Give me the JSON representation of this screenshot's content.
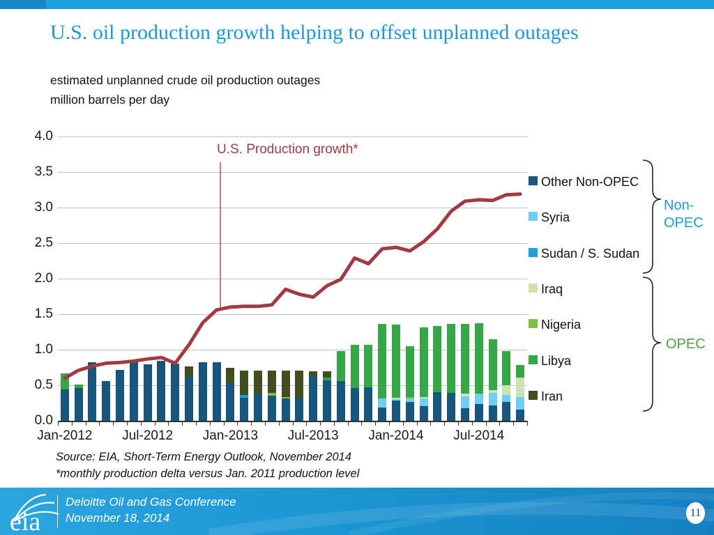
{
  "slide": {
    "title": "U.S. oil production growth helping to offset unplanned outages",
    "subtitle_line1": "estimated unplanned crude oil production outages",
    "subtitle_line2": "million barrels per day",
    "source_line1": "Source: EIA, Short-Term Energy Outlook, November 2014",
    "source_line2": "*monthly production delta versus Jan. 2011 production level",
    "page_number": "11"
  },
  "footer": {
    "logo_text": "eia",
    "event_name": "Deloitte Oil and Gas Conference",
    "event_date": "November 18, 2014"
  },
  "colors": {
    "accent_blue": "#1C9AD8",
    "opec_green": "#4FA046",
    "line_maroon": "#A03B44",
    "grid_gray": "#BFBFBF"
  },
  "legend": {
    "items": [
      {
        "label": "Other Non-OPEC",
        "color": "#17567D"
      },
      {
        "label": "Syria",
        "color": "#6DCFF6"
      },
      {
        "label": "Sudan / S. Sudan",
        "color": "#1F9ED9"
      },
      {
        "label": "Iraq",
        "color": "#CDE2B1"
      },
      {
        "label": "Nigeria",
        "color": "#7FBE41"
      },
      {
        "label": "Libya",
        "color": "#37A649"
      },
      {
        "label": "Iran",
        "color": "#414E20"
      }
    ],
    "group_nonopec": "Non-\nOPEC",
    "group_opec": "OPEC"
  },
  "annotation": {
    "label": "U.S. Production growth*"
  },
  "chart_data": {
    "type": "bar",
    "subtype": "stacked-bar-with-line",
    "title": "estimated unplanned crude oil production outages",
    "ylabel": "million barrels per day",
    "ylim": [
      0,
      4
    ],
    "y_ticks": [
      0,
      0.5,
      1,
      1.5,
      2,
      2.5,
      3,
      3.5,
      4
    ],
    "grid": true,
    "legend_position": "right",
    "x": [
      "Jan-2012",
      "Feb-2012",
      "Mar-2012",
      "Apr-2012",
      "May-2012",
      "Jun-2012",
      "Jul-2012",
      "Aug-2012",
      "Sep-2012",
      "Oct-2012",
      "Nov-2012",
      "Dec-2012",
      "Jan-2013",
      "Feb-2013",
      "Mar-2013",
      "Apr-2013",
      "May-2013",
      "Jun-2013",
      "Jul-2013",
      "Aug-2013",
      "Sep-2013",
      "Oct-2013",
      "Nov-2013",
      "Dec-2013",
      "Jan-2014",
      "Feb-2014",
      "Mar-2014",
      "Apr-2014",
      "May-2014",
      "Jun-2014",
      "Jul-2014",
      "Aug-2014",
      "Sep-2014",
      "Oct-2014"
    ],
    "x_tick_labels": [
      "Jan-2012",
      "Jul-2012",
      "Jan-2013",
      "Jul-2013",
      "Jan-2014",
      "Jul-2014"
    ],
    "series": [
      {
        "name": "Iran",
        "color": "#414E20",
        "values": [
          0.14,
          0.2,
          0.25,
          0.38,
          0.45,
          0.5,
          0.71,
          0.73,
          0.74,
          0.76,
          0.77,
          0.78,
          0.75,
          0.71,
          0.71,
          0.71,
          0.71,
          0.71,
          0.7,
          0.7,
          0.7,
          0.7,
          0.7,
          0.72,
          0.72,
          0.62,
          0.62,
          0.62,
          0.62,
          0.63,
          0.62,
          0.62,
          0.64,
          0.62
        ]
      },
      {
        "name": "Libya",
        "color": "#37A649",
        "values": [
          0.67,
          0.51,
          0.39,
          0.17,
          0.1,
          0.06,
          0.03,
          0.02,
          0.02,
          0.02,
          0.02,
          0.03,
          0.1,
          0.21,
          0.16,
          0.18,
          0.13,
          0.15,
          0.45,
          0.61,
          0.98,
          1.07,
          1.07,
          1.36,
          1.35,
          1.05,
          1.31,
          1.33,
          1.36,
          1.36,
          1.37,
          1.15,
          0.98,
          0.78
        ]
      },
      {
        "name": "Nigeria",
        "color": "#7FBE41",
        "values": [
          0.07,
          0.08,
          0.1,
          0.1,
          0.08,
          0.12,
          0.06,
          0.06,
          0.07,
          0.08,
          0.09,
          0.11,
          0.25,
          0.33,
          0.36,
          0.39,
          0.33,
          0.3,
          0.42,
          0.31,
          0.36,
          0.26,
          0.26,
          0.24,
          0.25,
          0.33,
          0.16,
          0.25,
          0.26,
          0.33,
          0.31,
          0.31,
          0.18,
          0.16
        ]
      },
      {
        "name": "Iraq",
        "color": "#CDE2B1",
        "values": [
          0.04,
          0.04,
          0.05,
          0.03,
          0.03,
          0.03,
          0.04,
          0.03,
          0.03,
          0.03,
          0.04,
          0.04,
          0.1,
          0.15,
          0.16,
          0.15,
          0.16,
          0.12,
          0.2,
          0.26,
          0.31,
          0.3,
          0.33,
          0.31,
          0.32,
          0.28,
          0.33,
          0.33,
          0.38,
          0.38,
          0.34,
          0.43,
          0.5,
          0.61
        ]
      },
      {
        "name": "Sudan / S. Sudan",
        "color": "#1F9ED9",
        "values": [
          0.05,
          0.29,
          0.31,
          0.29,
          0.33,
          0.35,
          0.29,
          0.3,
          0.3,
          0.3,
          0.3,
          0.3,
          0.33,
          0.36,
          0.34,
          0.3,
          0.31,
          0.3,
          0.12,
          0.13,
          0.08,
          0.08,
          0.08,
          0.04,
          0.08,
          0.1,
          0.07,
          0.07,
          0.07,
          0.13,
          0.11,
          0.13,
          0.12,
          0.11
        ]
      },
      {
        "name": "Syria",
        "color": "#6DCFF6",
        "values": [
          0.13,
          0.13,
          0.13,
          0.12,
          0.13,
          0.13,
          0.13,
          0.15,
          0.14,
          0.15,
          0.16,
          0.18,
          0.22,
          0.23,
          0.26,
          0.23,
          0.28,
          0.27,
          0.3,
          0.28,
          0.3,
          0.3,
          0.3,
          0.31,
          0.3,
          0.31,
          0.31,
          0.31,
          0.31,
          0.34,
          0.38,
          0.39,
          0.36,
          0.33
        ]
      },
      {
        "name": "Other Non-OPEC",
        "color": "#17567D",
        "values": [
          0.44,
          0.46,
          0.82,
          0.56,
          0.72,
          0.83,
          0.79,
          0.84,
          0.8,
          0.62,
          0.82,
          0.82,
          0.53,
          0.32,
          0.38,
          0.35,
          0.31,
          0.32,
          0.63,
          0.57,
          0.56,
          0.46,
          0.47,
          0.19,
          0.28,
          0.26,
          0.21,
          0.4,
          0.39,
          0.18,
          0.24,
          0.22,
          0.26,
          0.16
        ]
      }
    ],
    "line_series": {
      "name": "U.S. Production growth*",
      "color": "#A03B44",
      "note": "monthly production delta versus Jan. 2011 production level",
      "values": [
        0.6,
        0.71,
        0.77,
        0.81,
        0.82,
        0.84,
        0.87,
        0.89,
        0.81,
        1.07,
        1.38,
        1.56,
        1.6,
        1.61,
        1.61,
        1.63,
        1.85,
        1.78,
        1.74,
        1.9,
        1.99,
        2.29,
        2.21,
        2.42,
        2.44,
        2.39,
        2.52,
        2.7,
        2.95,
        3.09,
        3.11,
        3.1,
        3.18,
        3.19
      ]
    }
  }
}
